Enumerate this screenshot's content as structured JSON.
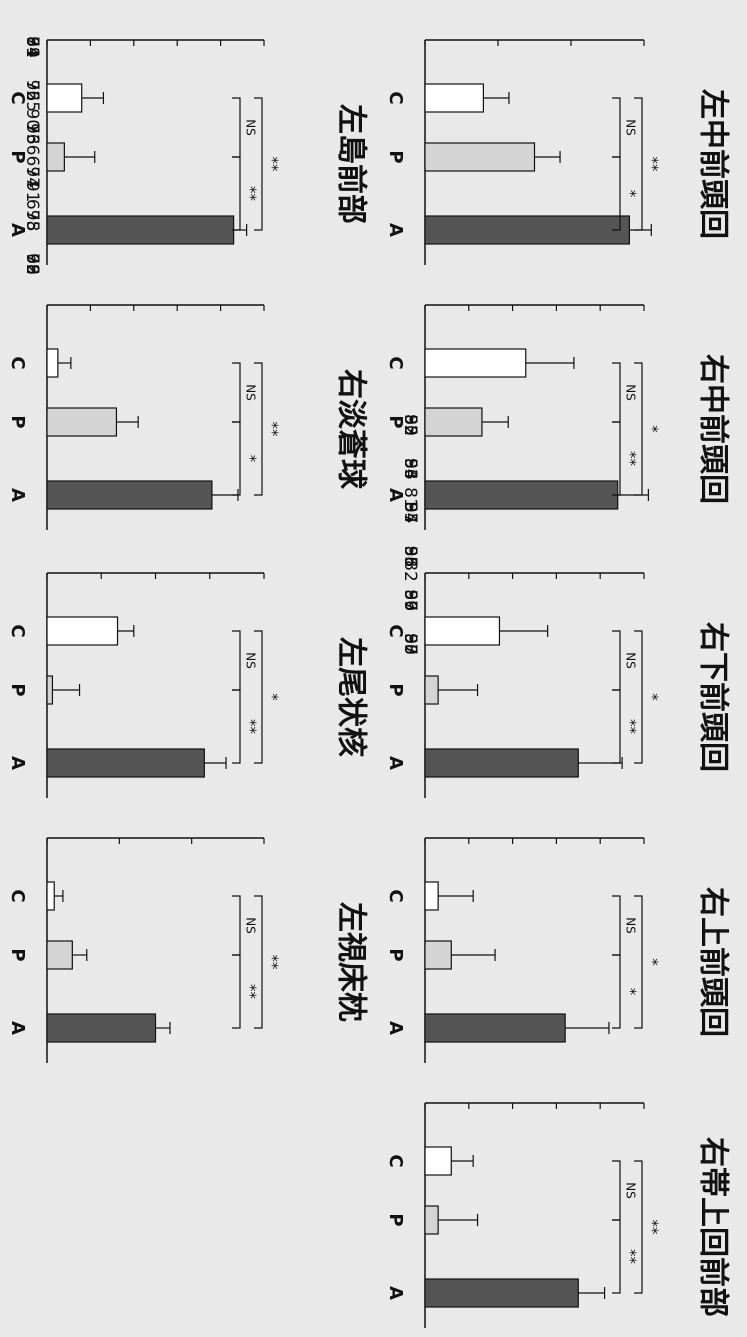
{
  "chart_data": [
    {
      "type": "bar",
      "title": "左中前頭回",
      "categories": [
        "C",
        "P",
        "A"
      ],
      "ylim": [
        80,
        83
      ],
      "yticks": [
        80,
        81,
        82,
        83
      ],
      "values": [
        80.8,
        81.5,
        82.8
      ],
      "errors": [
        0.35,
        0.35,
        0.3
      ],
      "brackets": [
        {
          "from": "C",
          "to": "P",
          "label": "NS"
        },
        {
          "from": "P",
          "to": "A",
          "label": "*"
        },
        {
          "from": "C",
          "to": "A",
          "label": "**"
        }
      ]
    },
    {
      "type": "bar",
      "title": "右中前頭回",
      "categories": [
        "C",
        "P",
        "A"
      ],
      "ylim": [
        52,
        57
      ],
      "yticks": [
        52,
        53,
        54,
        55,
        56,
        57
      ],
      "values": [
        54.3,
        53.3,
        56.4
      ],
      "errors": [
        1.1,
        0.6,
        0.7
      ],
      "brackets": [
        {
          "from": "C",
          "to": "P",
          "label": "NS"
        },
        {
          "from": "P",
          "to": "A",
          "label": "**"
        },
        {
          "from": "C",
          "to": "A",
          "label": "*"
        }
      ]
    },
    {
      "type": "bar",
      "title": "右下前頭回",
      "categories": [
        "C",
        "P",
        "A"
      ],
      "ylim": [
        93,
        98
      ],
      "yticks": [
        93,
        94,
        95,
        96,
        97,
        98
      ],
      "values": [
        94.7,
        93.3,
        96.5
      ],
      "errors": [
        1.1,
        0.9,
        1.0
      ],
      "brackets": [
        {
          "from": "C",
          "to": "P",
          "label": "NS"
        },
        {
          "from": "P",
          "to": "A",
          "label": "**"
        },
        {
          "from": "C",
          "to": "A",
          "label": "*"
        }
      ]
    },
    {
      "type": "bar",
      "title": "右上前頭回",
      "categories": [
        "C",
        "P",
        "A"
      ],
      "ylim": [
        85,
        90
      ],
      "yticks": [
        85,
        86,
        87,
        88,
        89,
        90
      ],
      "values": [
        85.3,
        85.6,
        88.2
      ],
      "errors": [
        0.8,
        1.0,
        1.0
      ],
      "brackets": [
        {
          "from": "C",
          "to": "P",
          "label": "NS"
        },
        {
          "from": "P",
          "to": "A",
          "label": "*"
        },
        {
          "from": "C",
          "to": "A",
          "label": "*"
        }
      ]
    },
    {
      "type": "bar",
      "title": "右帯上回前部",
      "categories": [
        "C",
        "P",
        "A"
      ],
      "ylim": [
        92,
        97
      ],
      "yticks": [
        92,
        93,
        94,
        95,
        96,
        97
      ],
      "values": [
        92.6,
        92.3,
        95.5
      ],
      "errors": [
        0.5,
        0.9,
        0.6
      ],
      "brackets": [
        {
          "from": "C",
          "to": "P",
          "label": "NS"
        },
        {
          "from": "P",
          "to": "A",
          "label": "**"
        },
        {
          "from": "C",
          "to": "A",
          "label": "**"
        }
      ]
    },
    {
      "type": "bar",
      "title": "左島前部",
      "categories": [
        "C",
        "P",
        "A"
      ],
      "ylim": [
        94,
        99
      ],
      "yticks": [
        94,
        95,
        96,
        97,
        98,
        99
      ],
      "values": [
        94.8,
        94.4,
        98.3
      ],
      "errors": [
        0.5,
        0.7,
        0.3
      ],
      "brackets": [
        {
          "from": "C",
          "to": "P",
          "label": "NS"
        },
        {
          "from": "P",
          "to": "A",
          "label": "**"
        },
        {
          "from": "C",
          "to": "A",
          "label": "**"
        }
      ]
    },
    {
      "type": "bar",
      "title": "右淡蒼球",
      "categories": [
        "C",
        "P",
        "A"
      ],
      "ylim": [
        71,
        76
      ],
      "yticks": [
        71,
        72,
        73,
        74,
        75,
        76
      ],
      "values": [
        71.25,
        72.6,
        74.8
      ],
      "errors": [
        0.3,
        0.5,
        0.6
      ],
      "brackets": [
        {
          "from": "C",
          "to": "P",
          "label": "NS"
        },
        {
          "from": "P",
          "to": "A",
          "label": "*"
        },
        {
          "from": "C",
          "to": "A",
          "label": "**"
        }
      ]
    },
    {
      "type": "bar",
      "title": "左尾状核",
      "categories": [
        "C",
        "P",
        "A"
      ],
      "ylim": [
        64,
        68
      ],
      "yticks": [
        64,
        65,
        66,
        67,
        68
      ],
      "values": [
        65.3,
        64.1,
        66.9
      ],
      "errors": [
        0.3,
        0.5,
        0.4
      ],
      "brackets": [
        {
          "from": "C",
          "to": "P",
          "label": "NS"
        },
        {
          "from": "P",
          "to": "A",
          "label": "**"
        },
        {
          "from": "C",
          "to": "A",
          "label": "*"
        }
      ]
    },
    {
      "type": "bar",
      "title": "左視床枕",
      "categories": [
        "C",
        "P",
        "A"
      ],
      "ylim": [
        89,
        92
      ],
      "yticks": [
        89,
        90,
        91,
        92
      ],
      "values": [
        89.1,
        89.35,
        90.5
      ],
      "errors": [
        0.12,
        0.2,
        0.2
      ],
      "brackets": [
        {
          "from": "C",
          "to": "P",
          "label": "NS"
        },
        {
          "from": "P",
          "to": "A",
          "label": "**"
        },
        {
          "from": "C",
          "to": "A",
          "label": "**"
        }
      ]
    }
  ],
  "colors": {
    "C": "#ffffff",
    "P": "#d4d4d4",
    "A": "#555555"
  }
}
